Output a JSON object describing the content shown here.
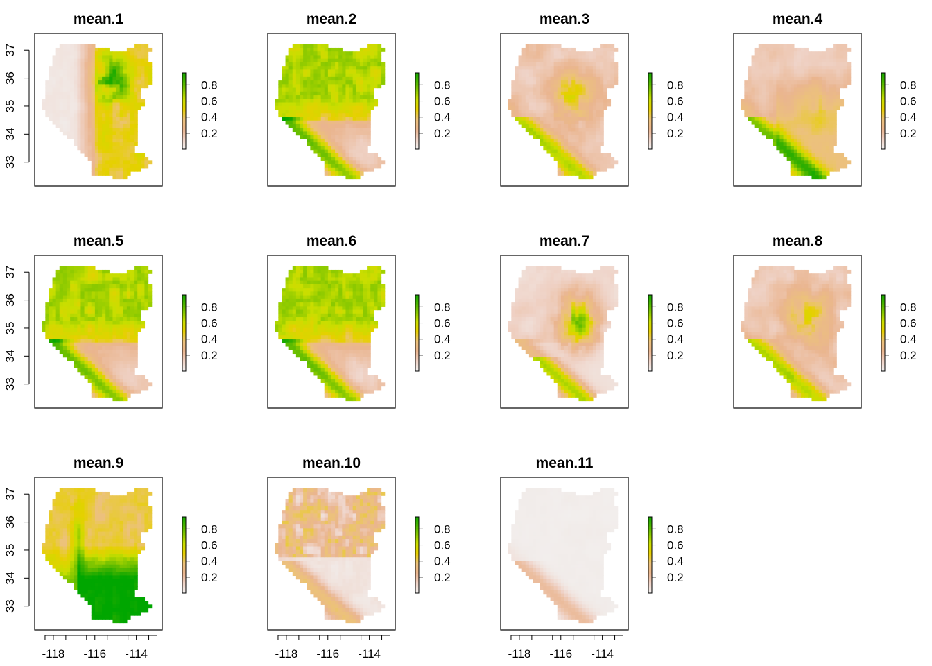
{
  "chart_data": {
    "type": "heatmap",
    "layout": "3 rows x 4 columns of raster map panels, each with its own vertical color legend",
    "grid": false,
    "legend_placement": "right of each panel",
    "colormap": {
      "name": "terrain (reversed)",
      "stops": [
        "#f2f2f2",
        "#efd2c6",
        "#eab58f",
        "#ecc27a",
        "#e6d000",
        "#c8de00",
        "#7cc400",
        "#38b000",
        "#00a600"
      ]
    },
    "x_axis": {
      "ticks": [
        -118,
        -116,
        -114
      ],
      "shown_on_bottom_row_only": true
    },
    "y_axis": {
      "ticks": [
        33,
        34,
        35,
        36,
        37
      ],
      "shown_on_first_column_only": true
    },
    "legend_ticks": [
      0.2,
      0.4,
      0.6,
      0.8
    ],
    "legend_range": [
      0.0,
      0.95
    ],
    "panels": [
      {
        "title": "mean.1",
        "pattern": "east"
      },
      {
        "title": "mean.2",
        "pattern": "north_mixed"
      },
      {
        "title": "mean.3",
        "pattern": "central"
      },
      {
        "title": "mean.4",
        "pattern": "southeast"
      },
      {
        "title": "mean.5",
        "pattern": "north_mixed"
      },
      {
        "title": "mean.6",
        "pattern": "north_mixed"
      },
      {
        "title": "mean.7",
        "pattern": "central_east"
      },
      {
        "title": "mean.8",
        "pattern": "central"
      },
      {
        "title": "mean.9",
        "pattern": "south_high"
      },
      {
        "title": "mean.10",
        "pattern": "north_patchy"
      },
      {
        "title": "mean.11",
        "pattern": "low"
      }
    ]
  }
}
